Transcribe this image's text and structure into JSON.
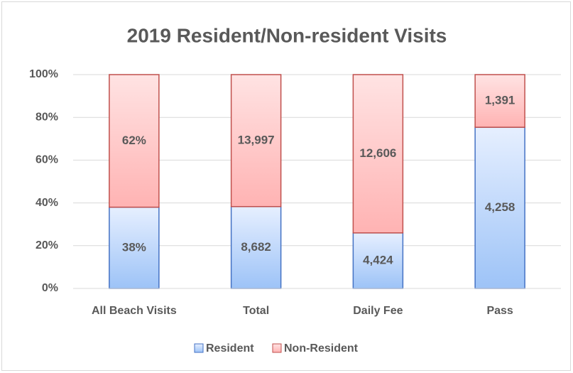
{
  "chart_data": {
    "type": "stacked_bar_100",
    "title": "2019 Resident/Non-resident Visits",
    "categories": [
      "All Beach Visits",
      "Total",
      "Daily Fee",
      "Pass"
    ],
    "series": [
      {
        "name": "Resident",
        "color": "#9dc3f7",
        "border": "#4472c4",
        "values": [
          38,
          8682,
          4424,
          4258
        ],
        "value_labels": [
          "38%",
          "8,682",
          "4,424",
          "4,258"
        ]
      },
      {
        "name": "Non-Resident",
        "color": "#ffb3b3",
        "border": "#c0504d",
        "values": [
          62,
          13997,
          12606,
          1391
        ],
        "value_labels": [
          "62%",
          "13,997",
          "12,606",
          "1,391"
        ]
      }
    ],
    "ylim": [
      0,
      100
    ],
    "yticks": [
      {
        "value": 0,
        "label": "0%"
      },
      {
        "value": 20,
        "label": "20%"
      },
      {
        "value": 40,
        "label": "40%"
      },
      {
        "value": 60,
        "label": "60%"
      },
      {
        "value": 80,
        "label": "80%"
      },
      {
        "value": 100,
        "label": "100%"
      }
    ],
    "grid": true,
    "legend": "bottom"
  }
}
